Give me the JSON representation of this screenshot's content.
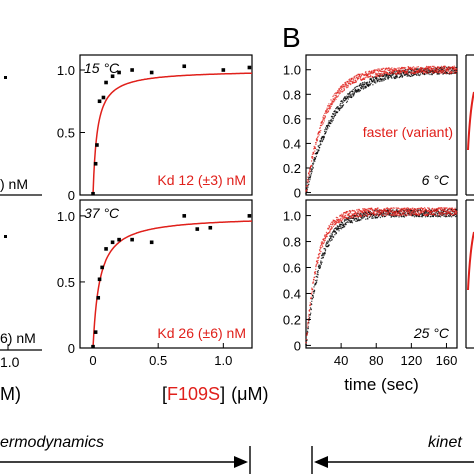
{
  "colors": {
    "fit": "#e0201b",
    "data": "#000000",
    "variant": "#e0201b"
  },
  "panel_label_B": "B",
  "left_fragments": {
    "top_nm": ") nM",
    "bottom_nm": "6) nM",
    "tick": "1.0",
    "unit": "M)"
  },
  "footer": {
    "left": "ermodynamics",
    "right": "kinet"
  },
  "chart_data": [
    {
      "id": "binding-15C",
      "type": "scatter",
      "temperature_label": "15 °C",
      "kd_label": "Kd 12 (±3) nM",
      "yticks": [
        "0",
        "0.5",
        "1.0"
      ],
      "xticks": [],
      "ylim": [
        0,
        1.12
      ],
      "xlim": [
        -0.1,
        1.22
      ],
      "points": [
        [
          0.0,
          0.01
        ],
        [
          0.02,
          0.25
        ],
        [
          0.03,
          0.4
        ],
        [
          0.05,
          0.75
        ],
        [
          0.08,
          0.78
        ],
        [
          0.1,
          0.9
        ],
        [
          0.15,
          0.95
        ],
        [
          0.2,
          0.98
        ],
        [
          0.3,
          1.0
        ],
        [
          0.45,
          0.98
        ],
        [
          0.7,
          1.03
        ],
        [
          1.0,
          1.0
        ],
        [
          1.2,
          1.02
        ]
      ],
      "fit": {
        "model": "hyperbolic",
        "max": 1.0,
        "half": 0.032
      }
    },
    {
      "id": "binding-37C",
      "type": "scatter",
      "temperature_label": "37 °C",
      "kd_label": "Kd 26 (±6) nM",
      "yticks": [
        "0",
        "0.5",
        "1.0"
      ],
      "xticks": [
        "0",
        "0.5",
        "1.0"
      ],
      "ylim": [
        0,
        1.12
      ],
      "xlim": [
        -0.1,
        1.22
      ],
      "points": [
        [
          0.0,
          0.01
        ],
        [
          0.02,
          0.12
        ],
        [
          0.04,
          0.38
        ],
        [
          0.05,
          0.52
        ],
        [
          0.07,
          0.61
        ],
        [
          0.1,
          0.75
        ],
        [
          0.15,
          0.8
        ],
        [
          0.2,
          0.82
        ],
        [
          0.3,
          0.82
        ],
        [
          0.45,
          0.8
        ],
        [
          0.7,
          1.0
        ],
        [
          0.8,
          0.9
        ],
        [
          0.9,
          0.91
        ],
        [
          1.2,
          1.0
        ]
      ],
      "fit": {
        "model": "hyperbolic",
        "max": 1.0,
        "half": 0.05
      }
    },
    {
      "id": "kinetics-6C",
      "type": "line",
      "temperature_label": "6 °C",
      "variant_label": "faster (variant)",
      "yticks": [
        "0",
        "0.2",
        "0.4",
        "0.6",
        "0.8",
        "1.0"
      ],
      "xticks": [],
      "ylim": [
        -0.02,
        1.12
      ],
      "xlim": [
        0,
        172
      ],
      "series": [
        {
          "color": "black",
          "amplitude": 1.0,
          "tau": 32
        },
        {
          "color": "red",
          "amplitude": 1.0,
          "tau": 22
        }
      ]
    },
    {
      "id": "kinetics-25C",
      "type": "line",
      "temperature_label": "25 °C",
      "yticks": [
        "0",
        "0.2",
        "0.4",
        "0.6",
        "0.8",
        "1.0"
      ],
      "xticks": [
        "40",
        "80",
        "120",
        "160"
      ],
      "xlabel": "time (sec)",
      "ylim": [
        -0.02,
        1.12
      ],
      "xlim": [
        0,
        172
      ],
      "series": [
        {
          "color": "black",
          "amplitude": 1.02,
          "tau": 17
        },
        {
          "color": "red",
          "amplitude": 1.03,
          "tau": 13
        }
      ]
    }
  ],
  "xlabel_binding": {
    "bracket_open": "[",
    "name": "F109S",
    "bracket_close": "]",
    "unit": "(μM)"
  }
}
